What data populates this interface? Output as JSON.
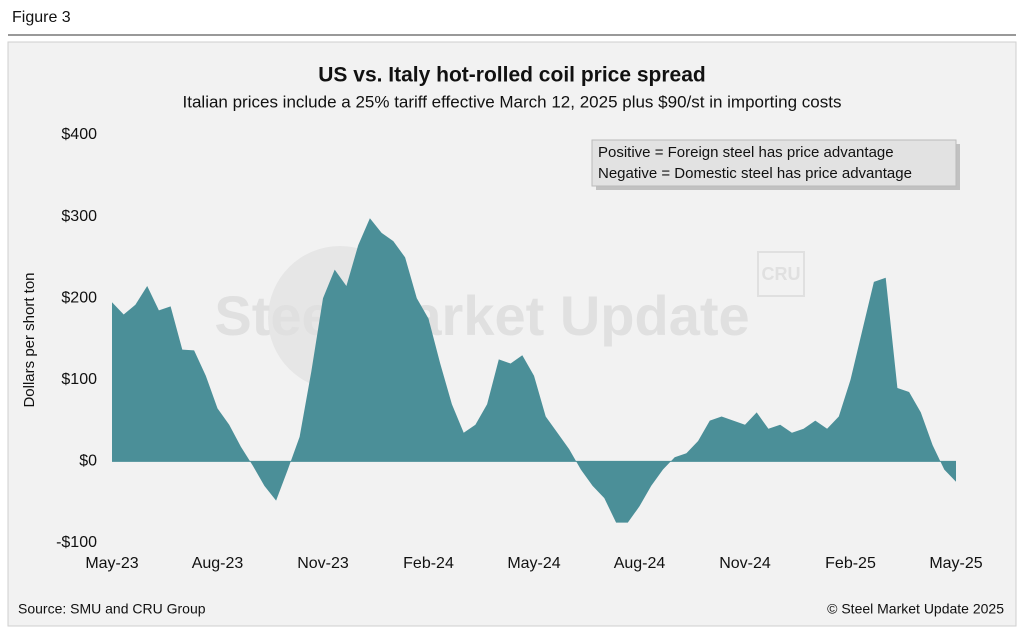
{
  "figure_label": "Figure 3",
  "source": "Source: SMU and CRU Group",
  "copyright": "© Steel Market Update 2025",
  "chart_data": {
    "type": "area",
    "title": "US vs. Italy hot-rolled coil price spread",
    "subtitle": "Italian prices include a 25% tariff effective March 12, 2025 plus $90/st in importing costs",
    "y_label": "Dollars per short ton",
    "annotations": [
      "Positive = Foreign steel has price advantage",
      "Negative = Domestic steel has price advantage"
    ],
    "watermark": "Steel Market Update",
    "logo": "CRU",
    "color": "#4b8f98",
    "categories": [
      "May-23",
      null,
      null,
      null,
      null,
      null,
      null,
      null,
      null,
      "Aug-23",
      null,
      null,
      null,
      null,
      null,
      null,
      null,
      null,
      "Nov-23",
      null,
      null,
      null,
      null,
      null,
      null,
      null,
      null,
      "Feb-24",
      null,
      null,
      null,
      null,
      null,
      null,
      null,
      null,
      "May-24",
      null,
      null,
      null,
      null,
      null,
      null,
      null,
      null,
      "Aug-24",
      null,
      null,
      null,
      null,
      null,
      null,
      null,
      null,
      "Nov-24",
      null,
      null,
      null,
      null,
      null,
      null,
      null,
      null,
      "Feb-25",
      null,
      null,
      null,
      null,
      null,
      null,
      null,
      null,
      "May-25"
    ],
    "values": [
      195,
      180,
      192,
      215,
      185,
      190,
      137,
      136,
      105,
      65,
      45,
      18,
      -5,
      -30,
      -48,
      -10,
      30,
      110,
      200,
      235,
      215,
      265,
      298,
      280,
      270,
      250,
      200,
      175,
      120,
      70,
      35,
      45,
      70,
      125,
      120,
      130,
      105,
      55,
      35,
      15,
      -10,
      -30,
      -45,
      -75,
      -75,
      -55,
      -30,
      -10,
      5,
      10,
      25,
      50,
      55,
      50,
      45,
      60,
      40,
      45,
      35,
      40,
      50,
      40,
      55,
      100,
      160,
      220,
      225,
      90,
      85,
      60,
      20,
      -10,
      -25
    ],
    "ylim": [
      -100,
      400
    ],
    "yticks": [
      {
        "value": -100,
        "label": "-$100"
      },
      {
        "value": 0,
        "label": "$0"
      },
      {
        "value": 100,
        "label": "$100"
      },
      {
        "value": 200,
        "label": "$200"
      },
      {
        "value": 300,
        "label": "$300"
      },
      {
        "value": 400,
        "label": "$400"
      }
    ]
  }
}
